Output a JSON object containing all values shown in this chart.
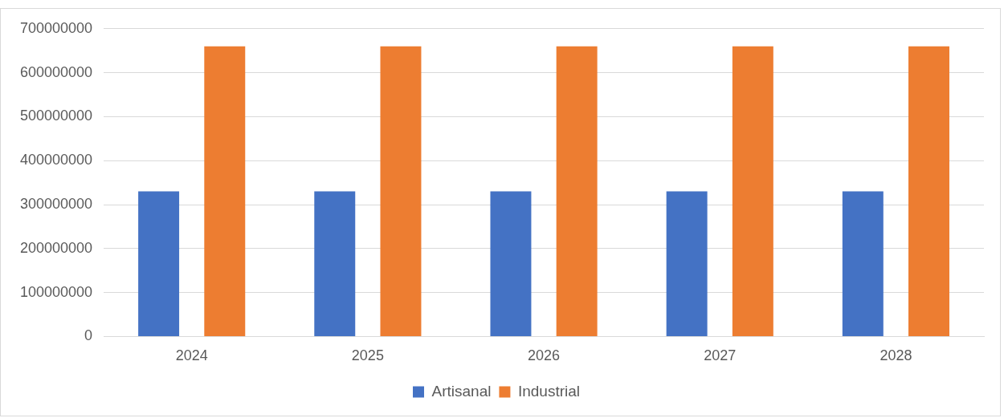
{
  "chart_data": {
    "type": "bar",
    "categories": [
      "2024",
      "2025",
      "2026",
      "2027",
      "2028"
    ],
    "series": [
      {
        "name": "Artisanal",
        "color": "#4472c4",
        "values": [
          330000000,
          330000000,
          330000000,
          330000000,
          330000000
        ]
      },
      {
        "name": "Industrial",
        "color": "#ed7d31",
        "values": [
          660000000,
          660000000,
          660000000,
          660000000,
          660000000
        ]
      }
    ],
    "ylim": [
      0,
      700000000
    ],
    "yticks": [
      0,
      100000000,
      200000000,
      300000000,
      400000000,
      500000000,
      600000000,
      700000000
    ],
    "grid": "y",
    "legend": "bottom"
  }
}
